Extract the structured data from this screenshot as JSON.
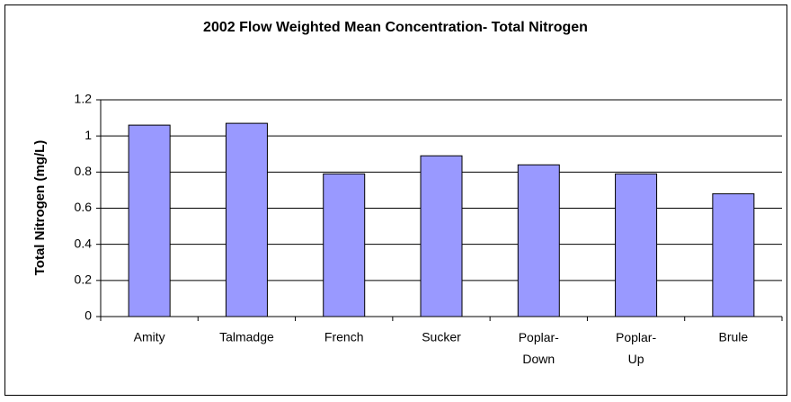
{
  "chart_data": {
    "type": "bar",
    "title": "2002 Flow Weighted Mean Concentration- Total Nitrogen",
    "y_label": "Total Nitrogen (mg/L)",
    "categories": [
      "Amity",
      "Talmadge",
      "French",
      "Sucker",
      "Poplar-Down",
      "Poplar-Up",
      "Brule"
    ],
    "values": [
      1.06,
      1.07,
      0.79,
      0.89,
      0.84,
      0.79,
      0.68
    ],
    "color": "#9999ff",
    "ylim": [
      0,
      1.2
    ],
    "yticks": [
      0,
      0.2,
      0.4,
      0.6,
      0.8,
      1,
      1.2
    ],
    "grid": true
  }
}
